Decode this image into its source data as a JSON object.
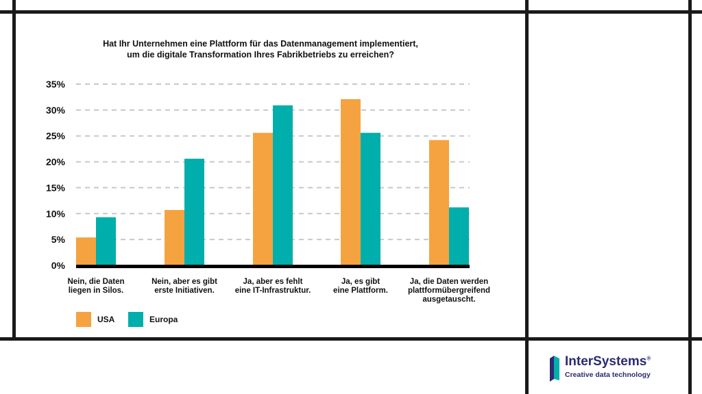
{
  "chart_data": {
    "type": "bar",
    "title": "Hat Ihr Unternehmen eine Plattform für das Datenmanagement implementiert, um die digitale Transformation Ihres Fabrikbetriebs zu erreichen?",
    "title_lines": [
      "Hat Ihr Unternehmen eine Plattform für das Datenmanagement implementiert,",
      "um die digitale Transformation Ihres Fabrikbetriebs zu erreichen?"
    ],
    "categories": [
      [
        "Nein, die Daten",
        "liegen in Silos."
      ],
      [
        "Nein, aber es gibt",
        "erste Initiativen."
      ],
      [
        "Ja, aber es fehlt",
        "eine IT-Infrastruktur."
      ],
      [
        "Ja, es gibt",
        "eine Plattform."
      ],
      [
        "Ja, die Daten werden",
        "plattformübergreifend",
        "ausgetauscht."
      ]
    ],
    "series": [
      {
        "name": "USA",
        "color": "#f4a340",
        "values": [
          5.4,
          10.7,
          25.6,
          32.1,
          24.2
        ]
      },
      {
        "name": "Europa",
        "color": "#00aeac",
        "values": [
          9.3,
          20.6,
          30.9,
          25.6,
          11.2
        ]
      }
    ],
    "yticks": [
      "0%",
      "5%",
      "10%",
      "15%",
      "20%",
      "25%",
      "30%",
      "35%"
    ],
    "ylim": [
      0,
      35
    ],
    "grid": true,
    "legend_position": "bottom-left"
  },
  "logo": {
    "name": "InterSystems",
    "registered": "®",
    "tagline": "Creative data technology"
  }
}
